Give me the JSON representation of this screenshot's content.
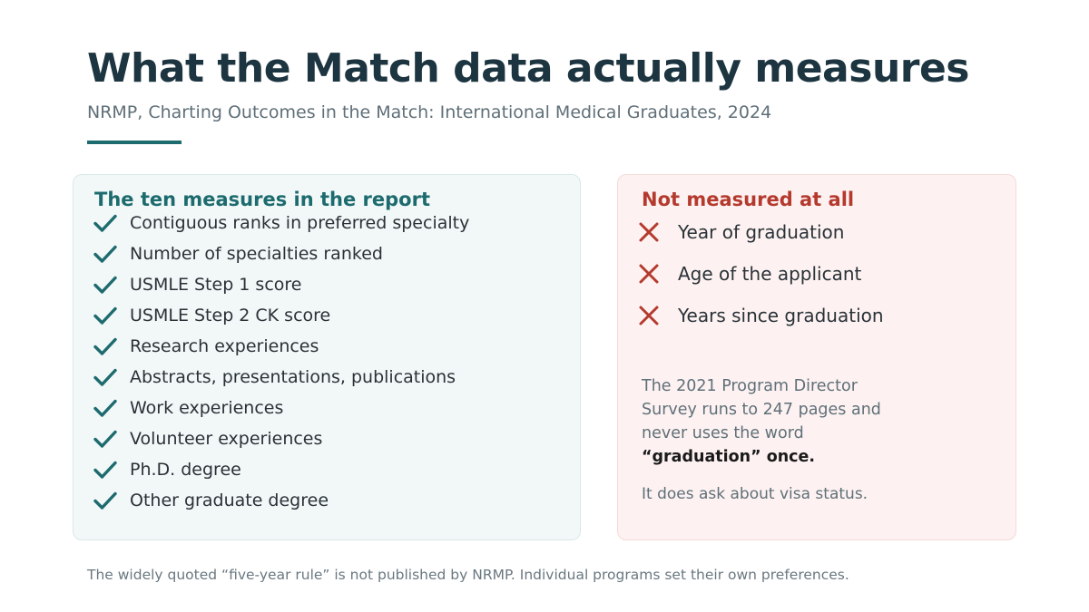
{
  "header": {
    "title": "What the Match data actually measures",
    "subtitle": "NRMP, Charting Outcomes in the Match: International Medical Graduates, 2024"
  },
  "measured_card": {
    "heading": "The ten measures in the report",
    "icon": "check-icon",
    "accent_color": "#1d6b6e",
    "items": [
      "Contiguous ranks in preferred specialty",
      "Number of specialties ranked",
      "USMLE Step 1 score",
      "USMLE Step 2 CK score",
      "Research experiences",
      "Abstracts, presentations, publications",
      "Work experiences",
      "Volunteer experiences",
      "Ph.D. degree",
      "Other graduate degree"
    ]
  },
  "not_measured_card": {
    "heading": "Not measured at all",
    "icon": "x-icon",
    "accent_color": "#b53a2e",
    "items": [
      "Year of graduation",
      "Age of the applicant",
      "Years since graduation"
    ],
    "note_text": "The 2021 Program Director Survey runs to 247 pages and never uses the word",
    "note_emphasis": "“graduation” once.",
    "note_secondary": "It does ask about visa status."
  },
  "footer": {
    "text": "The widely quoted “five-year rule” is not published by NRMP. Individual programs set their own preferences."
  }
}
